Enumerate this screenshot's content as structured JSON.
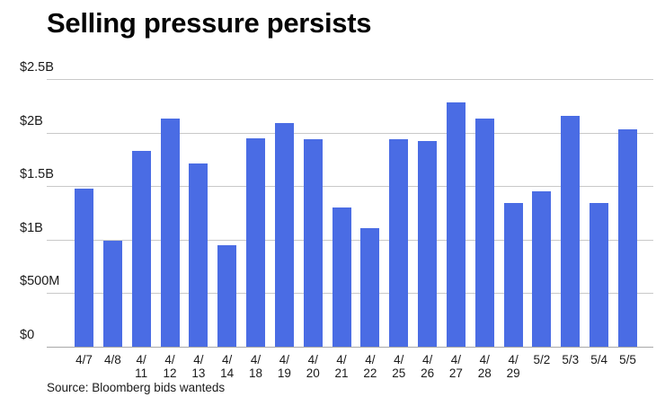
{
  "page": {
    "title": "Selling pressure persists",
    "source": "Source: Bloomberg bids wanteds"
  },
  "chart_data": {
    "type": "bar",
    "title": "Selling pressure persists",
    "source": "Source: Bloomberg bids wanteds",
    "unit": "USD billions",
    "categories": [
      "4/7",
      "4/8",
      "4/11",
      "4/12",
      "4/13",
      "4/14",
      "4/18",
      "4/19",
      "4/20",
      "4/21",
      "4/22",
      "4/25",
      "4/26",
      "4/27",
      "4/28",
      "4/29",
      "5/2",
      "5/3",
      "5/4",
      "5/5"
    ],
    "x_display_labels": [
      "4/7",
      "4/8",
      "4/\n11",
      "4/\n12",
      "4/\n13",
      "4/\n14",
      "4/\n18",
      "4/\n19",
      "4/\n20",
      "4/\n21",
      "4/\n22",
      "4/\n25",
      "4/\n26",
      "4/\n27",
      "4/\n28",
      "4/\n29",
      "5/2",
      "5/3",
      "5/4",
      "5/5"
    ],
    "values": [
      1.48,
      0.99,
      1.83,
      2.13,
      1.71,
      0.95,
      1.95,
      2.09,
      1.94,
      1.3,
      1.11,
      1.94,
      1.92,
      2.28,
      2.13,
      1.34,
      1.45,
      2.16,
      1.34,
      2.03
    ],
    "ylim": [
      0,
      2.5
    ],
    "yticks": [
      {
        "value": 2.5,
        "label": "$2.5B"
      },
      {
        "value": 2.0,
        "label": "$2B"
      },
      {
        "value": 1.5,
        "label": "$1.5B"
      },
      {
        "value": 1.0,
        "label": "$1B"
      },
      {
        "value": 0.5,
        "label": "$500M"
      },
      {
        "value": 0,
        "label": "$0"
      }
    ],
    "grid": true,
    "legend": "none",
    "colors": {
      "bar": "#4a6ce4",
      "gridline": "#c9c9c9",
      "baseline": "#a8a8a8",
      "text": "#1a1a1a",
      "title": "#050505"
    }
  }
}
